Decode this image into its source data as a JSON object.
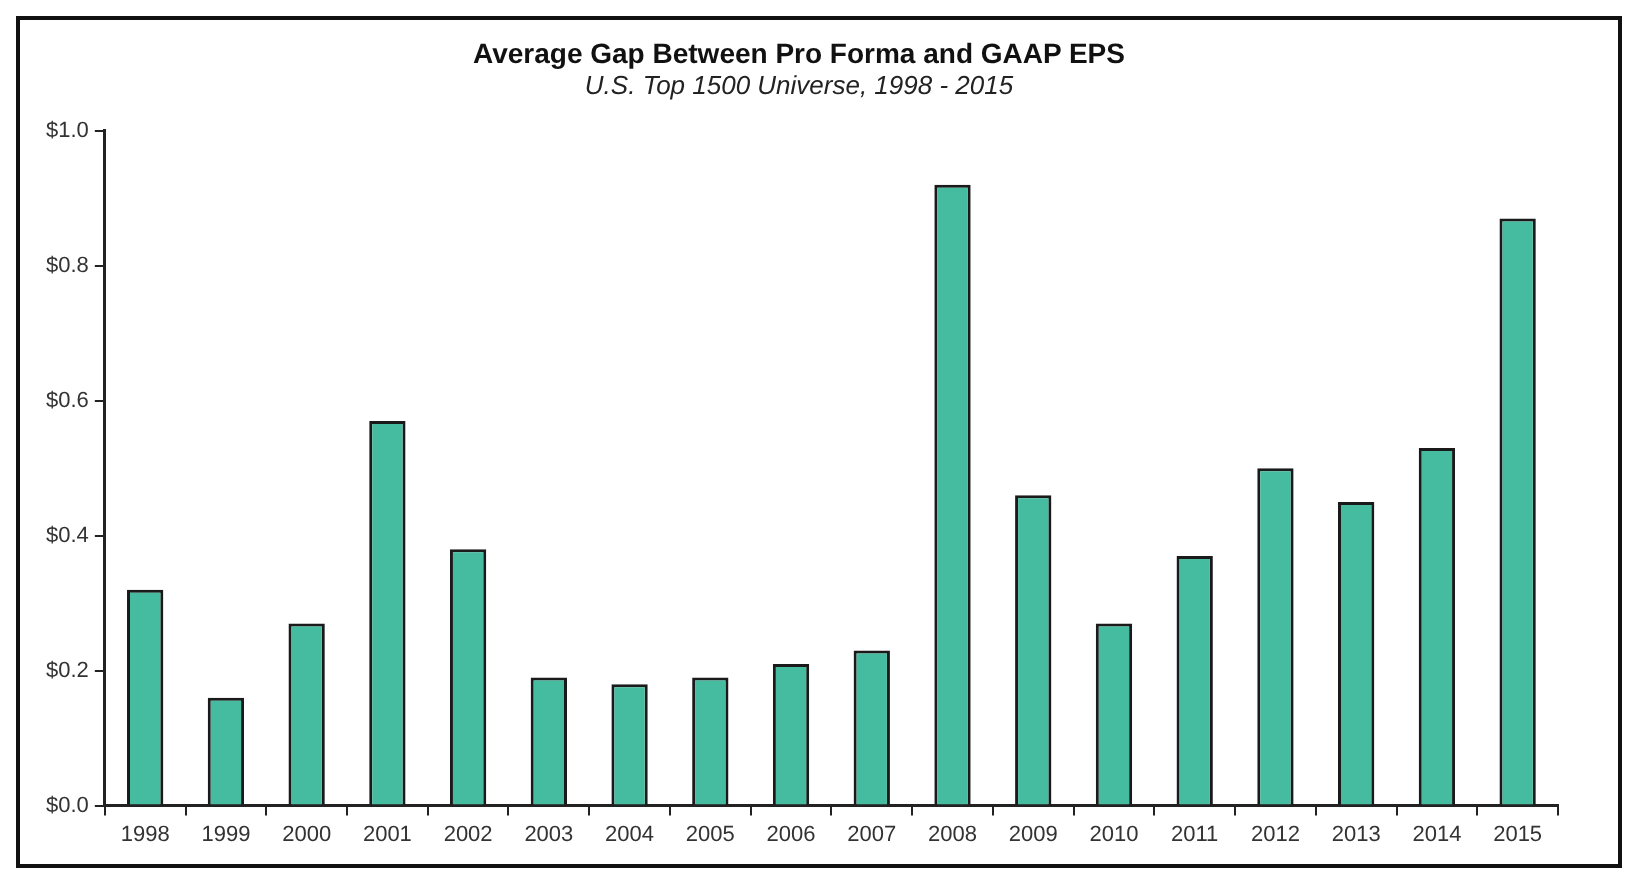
{
  "chart_data": {
    "type": "bar",
    "title": "Average Gap Between Pro Forma and GAAP EPS",
    "subtitle": "U.S. Top 1500 Universe, 1998 - 2015",
    "categories": [
      "1998",
      "1999",
      "2000",
      "2001",
      "2002",
      "2003",
      "2004",
      "2005",
      "2006",
      "2007",
      "2008",
      "2009",
      "2010",
      "2011",
      "2012",
      "2013",
      "2014",
      "2015"
    ],
    "values": [
      0.32,
      0.16,
      0.27,
      0.57,
      0.38,
      0.19,
      0.18,
      0.19,
      0.21,
      0.23,
      0.92,
      0.46,
      0.27,
      0.37,
      0.5,
      0.45,
      0.53,
      0.87
    ],
    "color": "#45bba0",
    "ylim": [
      0,
      1
    ],
    "yticks": [
      {
        "value": 0,
        "label": "$0.0"
      },
      {
        "value": 0.2,
        "label": "$0.2"
      },
      {
        "value": 0.4,
        "label": "$0.4"
      },
      {
        "value": 0.6,
        "label": "$0.6"
      },
      {
        "value": 0.8,
        "label": "$0.8"
      },
      {
        "value": 1,
        "label": "$1.0"
      }
    ],
    "grid": false,
    "legend": false
  }
}
